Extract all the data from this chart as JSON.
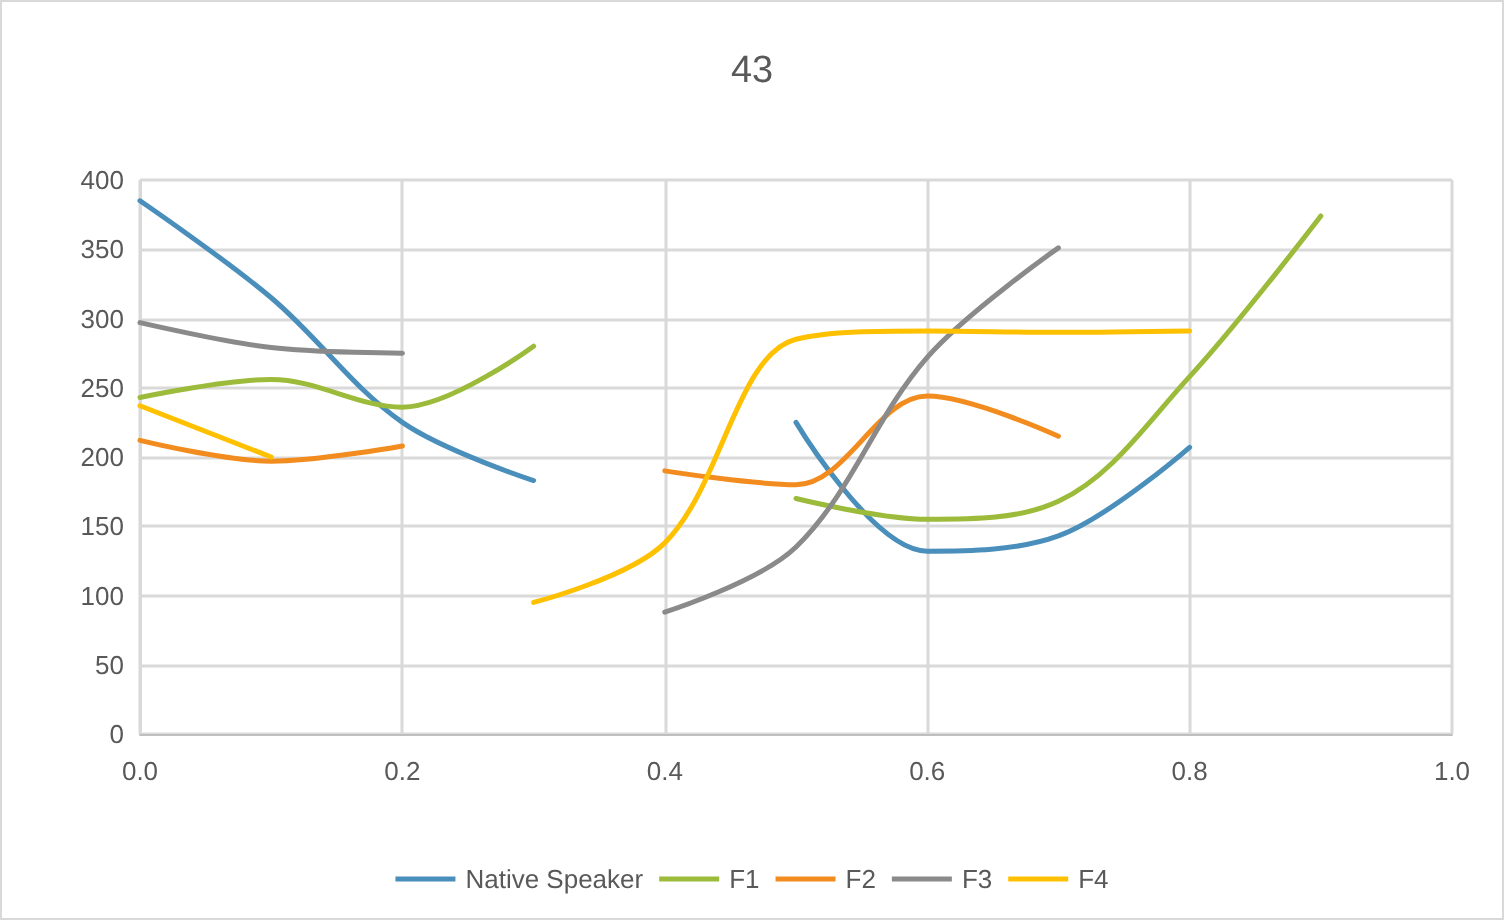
{
  "chart_data": {
    "type": "line",
    "title": "43",
    "x": [
      0,
      0.1,
      0.2,
      0.3,
      0.4,
      0.5,
      0.6,
      0.7,
      0.8,
      0.9
    ],
    "series": [
      {
        "name": "Native Speaker",
        "color": "#4a8fbb",
        "values": [
          385,
          315,
          225,
          183,
          null,
          225,
          132,
          143,
          207,
          null
        ]
      },
      {
        "name": "F1",
        "color": "#9cbb3a",
        "values": [
          243,
          256,
          236,
          280,
          null,
          170,
          155,
          168,
          258,
          374
        ]
      },
      {
        "name": "F2",
        "color": "#f28c1e",
        "values": [
          212,
          197,
          208,
          null,
          190,
          180,
          244,
          215,
          null,
          null
        ]
      },
      {
        "name": "F3",
        "color": "#8a8a8a",
        "values": [
          297,
          279,
          275,
          null,
          88,
          135,
          272,
          351,
          null,
          null
        ]
      },
      {
        "name": "F4",
        "color": "#ffc000",
        "values": [
          237,
          200,
          null,
          95,
          138,
          285,
          291,
          290,
          291,
          null
        ]
      }
    ],
    "xlim": [
      0,
      1
    ],
    "xticks": [
      {
        "value": 0,
        "label": "0.0"
      },
      {
        "value": 0.2,
        "label": "0.2"
      },
      {
        "value": 0.4,
        "label": "0.4"
      },
      {
        "value": 0.6,
        "label": "0.6"
      },
      {
        "value": 0.8,
        "label": "0.8"
      },
      {
        "value": 1,
        "label": "1.0"
      }
    ],
    "ylim": [
      0,
      400
    ],
    "yticks": [
      0,
      50,
      100,
      150,
      200,
      250,
      300,
      350,
      400
    ],
    "grid": true,
    "legend": "bottom",
    "marker": "none",
    "line_style": "solid"
  }
}
